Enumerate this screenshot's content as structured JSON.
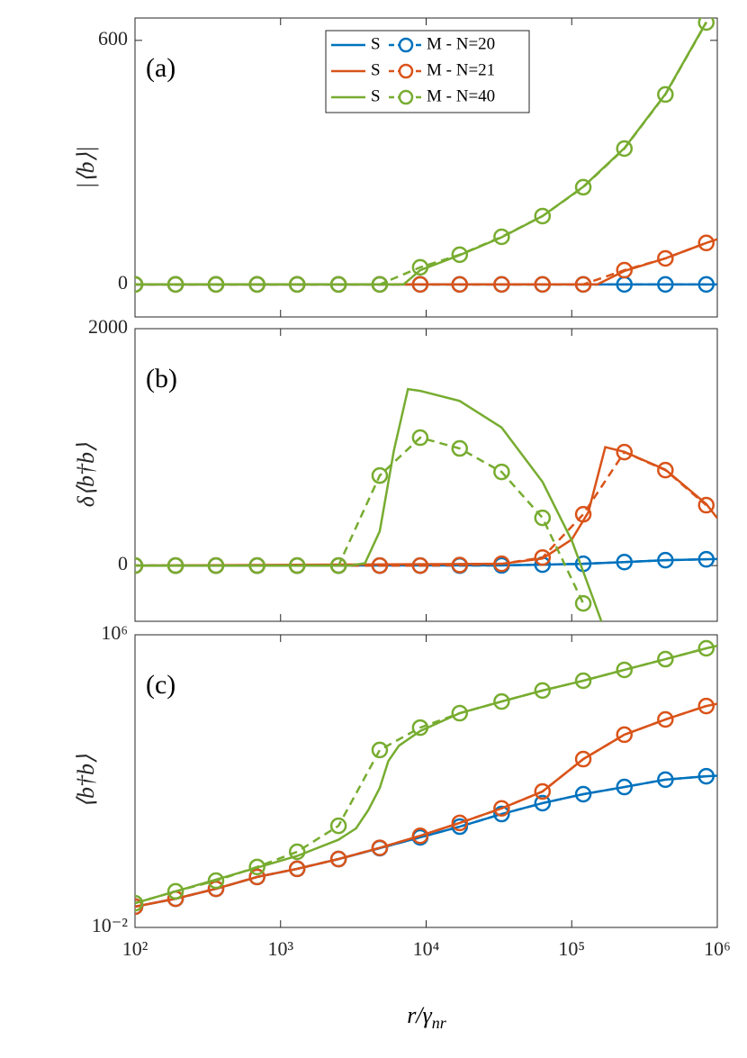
{
  "chart_data": [
    {
      "type": "line",
      "panel_label": "(a)",
      "ylabel": "|⟨b⟩|",
      "xlim": [
        100,
        1000000
      ],
      "xscale": "log",
      "ylim": [
        -80,
        655
      ],
      "yticks": [
        0,
        600
      ],
      "legend": "top",
      "series": [
        {
          "name": "S",
          "color": "#0072BD",
          "linestyle": "solid",
          "x": [
            100,
            1000000
          ],
          "values": [
            0,
            0
          ]
        },
        {
          "name": "M - N=20",
          "color": "#0072BD",
          "linestyle": "dashed",
          "marker": "circle",
          "x": [
            100,
            190,
            360,
            690,
            1300,
            2500,
            4800,
            9100,
            17000,
            33000,
            63000,
            120000,
            230000,
            440000,
            840000
          ],
          "values": [
            0,
            0,
            0,
            0,
            0,
            0,
            0,
            0,
            0,
            0,
            0,
            0,
            0,
            0,
            0
          ]
        },
        {
          "name": "S",
          "color": "#D95319",
          "linestyle": "solid",
          "x": [
            100,
            150000,
            230000,
            440000,
            840000,
            1000000
          ],
          "values": [
            0,
            0,
            33,
            64,
            102,
            111
          ]
        },
        {
          "name": "M - N=21",
          "color": "#D95319",
          "linestyle": "dashed",
          "marker": "circle",
          "x": [
            100,
            190,
            360,
            690,
            1300,
            2500,
            4800,
            9100,
            17000,
            33000,
            63000,
            120000,
            230000,
            440000,
            840000
          ],
          "values": [
            0,
            0,
            0,
            0,
            0,
            0,
            0,
            0,
            0,
            0,
            0,
            0,
            35,
            64,
            102
          ]
        },
        {
          "name": "S",
          "color": "#77AC30",
          "linestyle": "solid",
          "x": [
            100,
            4800,
            7000,
            9100,
            17000,
            33000,
            63000,
            120000,
            230000,
            440000,
            840000
          ],
          "values": [
            0,
            0,
            0,
            35,
            72,
            116,
            168,
            240,
            335,
            468,
            645
          ]
        },
        {
          "name": "M - N=40",
          "color": "#77AC30",
          "linestyle": "dashed",
          "marker": "circle",
          "x": [
            100,
            190,
            360,
            690,
            1300,
            2500,
            4800,
            9100,
            17000,
            33000,
            63000,
            120000,
            230000,
            440000,
            840000
          ],
          "values": [
            0,
            0,
            0,
            0,
            0,
            0,
            0,
            42,
            73,
            117,
            168,
            239,
            334,
            467,
            644
          ]
        }
      ]
    },
    {
      "type": "line",
      "panel_label": "(b)",
      "ylabel": "δ⟨b†b⟩",
      "xlim": [
        100,
        1000000
      ],
      "xscale": "log",
      "ylim": [
        -470,
        2000
      ],
      "yticks": [
        0,
        2000
      ],
      "series": [
        {
          "name": "S",
          "color": "#0072BD",
          "linestyle": "solid",
          "x": [
            100,
            33000,
            63000,
            120000,
            230000,
            440000,
            840000,
            1000000
          ],
          "values": [
            0,
            2,
            8,
            15,
            30,
            46,
            53,
            55
          ]
        },
        {
          "name": "M - N=20",
          "color": "#0072BD",
          "linestyle": "dashed",
          "marker": "circle",
          "x": [
            100,
            190,
            360,
            690,
            1300,
            2500,
            4800,
            9100,
            17000,
            33000,
            63000,
            120000,
            230000,
            440000,
            840000
          ],
          "values": [
            0,
            0,
            0,
            0,
            0,
            0,
            0,
            0,
            0,
            2,
            8,
            15,
            30,
            46,
            53
          ]
        },
        {
          "name": "S",
          "color": "#D95319",
          "linestyle": "solid",
          "x": [
            100,
            33000,
            63000,
            100000,
            130000,
            170000,
            230000,
            440000,
            840000,
            1000000
          ],
          "values": [
            0,
            15,
            60,
            220,
            450,
            1000,
            960,
            810,
            520,
            400
          ]
        },
        {
          "name": "M - N=21",
          "color": "#D95319",
          "linestyle": "dashed",
          "marker": "circle",
          "x": [
            100,
            190,
            360,
            690,
            1300,
            2500,
            4800,
            9100,
            17000,
            33000,
            63000,
            120000,
            230000,
            440000,
            840000
          ],
          "values": [
            0,
            0,
            0,
            0,
            0,
            0,
            0,
            0,
            5,
            15,
            68,
            433,
            958,
            806,
            510
          ]
        },
        {
          "name": "S",
          "color": "#77AC30",
          "linestyle": "solid",
          "x": [
            100,
            3000,
            3800,
            4800,
            6000,
            7500,
            9100,
            17000,
            33000,
            63000,
            100000,
            130000,
            160000
          ],
          "values": [
            0,
            0,
            20,
            290,
            970,
            1490,
            1475,
            1390,
            1165,
            707,
            213,
            -167,
            -471
          ]
        },
        {
          "name": "M - N=40",
          "color": "#77AC30",
          "linestyle": "dashed",
          "marker": "circle",
          "x": [
            100,
            190,
            360,
            690,
            1300,
            2500,
            4800,
            9100,
            17000,
            33000,
            63000,
            120000
          ],
          "values": [
            0,
            0,
            0,
            0,
            0,
            0,
            760,
            1080,
            989,
            791,
            403,
            -319
          ]
        }
      ]
    },
    {
      "type": "line",
      "panel_label": "(c)",
      "ylabel": "⟨b†b⟩",
      "xlim": [
        100,
        1000000
      ],
      "xscale": "log",
      "ylim": [
        0.01,
        1000000
      ],
      "yscale": "log",
      "yticks": [
        {
          "value": 0.01,
          "label": "10⁻²"
        },
        {
          "value": 1000000,
          "label": "10⁶"
        }
      ],
      "xticks": [
        {
          "value": 100,
          "label": "10²"
        },
        {
          "value": 1000,
          "label": "10³"
        },
        {
          "value": 10000,
          "label": "10⁴"
        },
        {
          "value": 100000,
          "label": "10⁵"
        },
        {
          "value": 1000000,
          "label": "10⁶"
        }
      ],
      "xlabel": {
        "base": "r/γ",
        "sub": "nr"
      },
      "series": [
        {
          "name": "S",
          "color": "#0072BD",
          "linestyle": "solid",
          "x": [
            100,
            190,
            360,
            690,
            1300,
            2500,
            4800,
            9100,
            17000,
            33000,
            63000,
            120000,
            230000,
            440000,
            840000,
            1000000
          ],
          "values": [
            0.037,
            0.061,
            0.114,
            0.24,
            0.4,
            0.74,
            1.47,
            2.9,
            5.7,
            12.6,
            25,
            44,
            69,
            110,
            136,
            140
          ]
        },
        {
          "name": "M - N=20",
          "color": "#0072BD",
          "linestyle": "dashed",
          "marker": "circle",
          "x": [
            100,
            190,
            360,
            690,
            1300,
            2500,
            4800,
            9100,
            17000,
            33000,
            63000,
            120000,
            230000,
            440000,
            840000
          ],
          "values": [
            0.037,
            0.061,
            0.114,
            0.24,
            0.4,
            0.74,
            1.47,
            2.9,
            5.7,
            12.6,
            25,
            44,
            69,
            110,
            136
          ]
        },
        {
          "name": "S",
          "color": "#D95319",
          "linestyle": "solid",
          "x": [
            100,
            190,
            360,
            690,
            1300,
            2500,
            4800,
            9100,
            17000,
            33000,
            63000,
            120000,
            230000,
            440000,
            840000,
            1000000
          ],
          "values": [
            0.037,
            0.061,
            0.114,
            0.24,
            0.4,
            0.74,
            1.5,
            3.2,
            7.2,
            18,
            52,
            400,
            1860,
            4850,
            11300,
            13000
          ]
        },
        {
          "name": "M - N=21",
          "color": "#D95319",
          "linestyle": "dashed",
          "marker": "circle",
          "x": [
            100,
            190,
            360,
            690,
            1300,
            2500,
            4800,
            9100,
            17000,
            33000,
            63000,
            120000,
            230000,
            440000,
            840000
          ],
          "values": [
            0.037,
            0.061,
            0.114,
            0.24,
            0.4,
            0.74,
            1.5,
            3.2,
            7.2,
            18,
            52,
            400,
            1860,
            4850,
            11300
          ]
        },
        {
          "name": "S",
          "color": "#77AC30",
          "linestyle": "solid",
          "x": [
            100,
            1300,
            2500,
            3300,
            4000,
            4800,
            5500,
            6500,
            9100,
            17000,
            33000,
            63000,
            120000,
            230000,
            440000,
            840000,
            1000000
          ],
          "values": [
            0.046,
            0.9,
            2.5,
            5.1,
            16,
            65,
            355,
            930,
            2350,
            7200,
            15000,
            30000,
            55600,
            110000,
            216000,
            427000,
            500000
          ]
        },
        {
          "name": "M - N=40",
          "color": "#77AC30",
          "linestyle": "dashed",
          "marker": "circle",
          "x": [
            100,
            190,
            360,
            690,
            1300,
            2500,
            4800,
            9100,
            17000,
            33000,
            63000,
            120000,
            230000,
            440000,
            840000
          ],
          "values": [
            0.046,
            0.097,
            0.19,
            0.45,
            1.17,
            6.0,
            710,
            2900,
            7200,
            15000,
            30000,
            55600,
            110000,
            216000,
            427000
          ]
        }
      ]
    }
  ]
}
